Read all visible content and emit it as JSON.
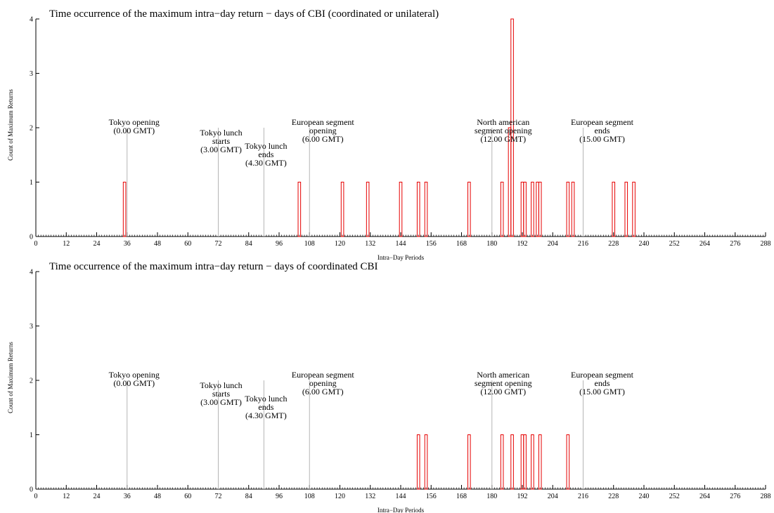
{
  "chart_data": [
    {
      "type": "bar",
      "title": "Time occurrence of the maximum intra−day return − days of CBI (coordinated or unilateral)",
      "xlabel": "Intra−Day Periods",
      "ylabel": "Count of Maximum Returns",
      "xlim": [
        0,
        288
      ],
      "ylim": [
        0,
        4
      ],
      "xticks": [
        "0",
        "12",
        "24",
        "36",
        "48",
        "60",
        "72",
        "84",
        "96",
        "108",
        "120",
        "132",
        "144",
        "156",
        "168",
        "180",
        "192",
        "204",
        "216",
        "228",
        "240",
        "252",
        "264",
        "276",
        "288"
      ],
      "yticks": [
        "0",
        "1",
        "2",
        "3",
        "4"
      ],
      "bar_color": "#e60000",
      "bars": [
        {
          "x": 35,
          "value": 1
        },
        {
          "x": 104,
          "value": 1
        },
        {
          "x": 121,
          "value": 1
        },
        {
          "x": 131,
          "value": 1
        },
        {
          "x": 144,
          "value": 1
        },
        {
          "x": 151,
          "value": 1
        },
        {
          "x": 154,
          "value": 1
        },
        {
          "x": 171,
          "value": 1
        },
        {
          "x": 184,
          "value": 1
        },
        {
          "x": 187,
          "value": 2
        },
        {
          "x": 188,
          "value": 4
        },
        {
          "x": 192,
          "value": 1
        },
        {
          "x": 193,
          "value": 1
        },
        {
          "x": 196,
          "value": 1
        },
        {
          "x": 198,
          "value": 1
        },
        {
          "x": 199,
          "value": 1
        },
        {
          "x": 210,
          "value": 1
        },
        {
          "x": 212,
          "value": 1
        },
        {
          "x": 228,
          "value": 1
        },
        {
          "x": 233,
          "value": 1
        },
        {
          "x": 236,
          "value": 1
        }
      ],
      "markers": [
        {
          "x": 36,
          "height": 2,
          "lines": [
            "Tokyo opening",
            "(0.00 GMT)"
          ]
        },
        {
          "x": 72,
          "height": 2,
          "lines": [
            "Tokyo lunch",
            "starts",
            "(3.00 GMT)"
          ]
        },
        {
          "x": 90,
          "height": 2,
          "lines": [
            "Tokyo lunch",
            "ends",
            "(4.30 GMT)"
          ]
        },
        {
          "x": 108,
          "height": 2,
          "lines": [
            "European segment",
            "opening",
            "(6.00 GMT)"
          ]
        },
        {
          "x": 180,
          "height": 2,
          "lines": [
            "North american",
            "segment opening",
            "(12.00 GMT)"
          ]
        },
        {
          "x": 216,
          "height": 2,
          "lines": [
            "European segment",
            "ends",
            "(15.00 GMT)"
          ]
        }
      ]
    },
    {
      "type": "bar",
      "title": "Time occurrence of the maximum intra−day return − days of coordinated CBI",
      "xlabel": "Intra−Day Periods",
      "ylabel": "Count of Maximum Returns",
      "xlim": [
        0,
        288
      ],
      "ylim": [
        0,
        4
      ],
      "xticks": [
        "0",
        "12",
        "24",
        "36",
        "48",
        "60",
        "72",
        "84",
        "96",
        "108",
        "120",
        "132",
        "144",
        "156",
        "168",
        "180",
        "192",
        "204",
        "216",
        "228",
        "240",
        "252",
        "264",
        "276",
        "288"
      ],
      "yticks": [
        "0",
        "1",
        "2",
        "3",
        "4"
      ],
      "bar_color": "#e60000",
      "bars": [
        {
          "x": 151,
          "value": 1
        },
        {
          "x": 154,
          "value": 1
        },
        {
          "x": 171,
          "value": 1
        },
        {
          "x": 184,
          "value": 1
        },
        {
          "x": 188,
          "value": 1
        },
        {
          "x": 192,
          "value": 1
        },
        {
          "x": 193,
          "value": 1
        },
        {
          "x": 196,
          "value": 1
        },
        {
          "x": 199,
          "value": 1
        },
        {
          "x": 210,
          "value": 1
        }
      ],
      "markers": [
        {
          "x": 36,
          "height": 2,
          "lines": [
            "Tokyo opening",
            "(0.00 GMT)"
          ]
        },
        {
          "x": 72,
          "height": 2,
          "lines": [
            "Tokyo lunch",
            "starts",
            "(3.00 GMT)"
          ]
        },
        {
          "x": 90,
          "height": 2,
          "lines": [
            "Tokyo lunch",
            "ends",
            "(4.30 GMT)"
          ]
        },
        {
          "x": 108,
          "height": 2,
          "lines": [
            "European segment",
            "opening",
            "(6.00 GMT)"
          ]
        },
        {
          "x": 180,
          "height": 2,
          "lines": [
            "North american",
            "segment opening",
            "(12.00 GMT)"
          ]
        },
        {
          "x": 216,
          "height": 2,
          "lines": [
            "European segment",
            "ends",
            "(15.00 GMT)"
          ]
        }
      ]
    }
  ]
}
